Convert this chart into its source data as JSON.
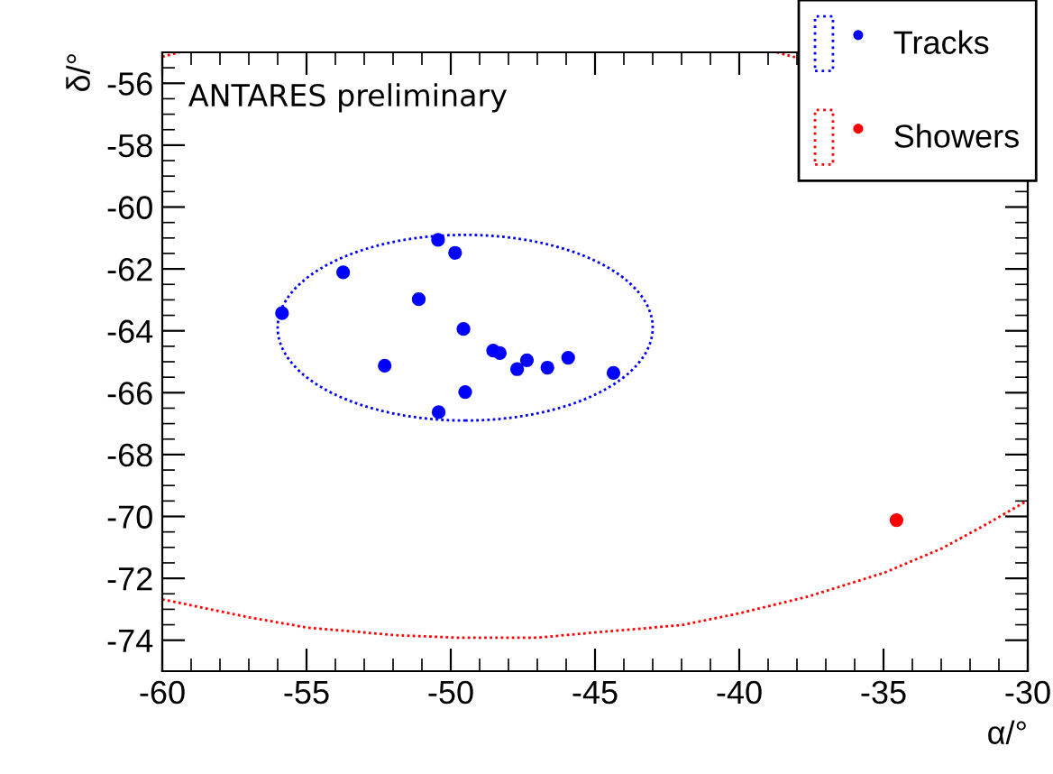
{
  "chart_data": {
    "type": "scatter",
    "xlabel": "α/°",
    "ylabel": "δ/°",
    "annotations": [
      "ANTARES preliminary"
    ],
    "xlim": [
      -60,
      -30
    ],
    "ylim": [
      -75,
      -55
    ],
    "xticks": [
      -60,
      {
        "value": -59,
        "label": null
      },
      {
        "value": -58,
        "label": null
      },
      {
        "value": -57,
        "label": null
      },
      {
        "value": -56,
        "label": null
      },
      -55,
      {
        "value": -54,
        "label": null
      },
      {
        "value": -53,
        "label": null
      },
      {
        "value": -52,
        "label": null
      },
      {
        "value": -51,
        "label": null
      },
      -50,
      {
        "value": -49,
        "label": null
      },
      {
        "value": -48,
        "label": null
      },
      {
        "value": -47,
        "label": null
      },
      {
        "value": -46,
        "label": null
      },
      -45,
      {
        "value": -44,
        "label": null
      },
      {
        "value": -43,
        "label": null
      },
      {
        "value": -42,
        "label": null
      },
      {
        "value": -41,
        "label": null
      },
      -40,
      {
        "value": -39,
        "label": null
      },
      {
        "value": -38,
        "label": null
      },
      {
        "value": -37,
        "label": null
      },
      {
        "value": -36,
        "label": null
      },
      -35,
      {
        "value": -34,
        "label": null
      },
      {
        "value": -33,
        "label": null
      },
      {
        "value": -32,
        "label": null
      },
      {
        "value": -31,
        "label": null
      },
      -30
    ],
    "yticks": [
      {
        "value": -75,
        "label": null
      },
      -74,
      {
        "value": -73.5,
        "label": null
      },
      {
        "value": -73,
        "label": null
      },
      {
        "value": -72.5,
        "label": null
      },
      -72,
      {
        "value": -71.5,
        "label": null
      },
      {
        "value": -71,
        "label": null
      },
      {
        "value": -70.5,
        "label": null
      },
      -70,
      {
        "value": -69.5,
        "label": null
      },
      {
        "value": -69,
        "label": null
      },
      {
        "value": -68.5,
        "label": null
      },
      -68,
      {
        "value": -67.5,
        "label": null
      },
      {
        "value": -67,
        "label": null
      },
      {
        "value": -66.5,
        "label": null
      },
      -66,
      {
        "value": -65.5,
        "label": null
      },
      {
        "value": -65,
        "label": null
      },
      {
        "value": -64.5,
        "label": null
      },
      -64,
      {
        "value": -63.5,
        "label": null
      },
      {
        "value": -63,
        "label": null
      },
      {
        "value": -62.5,
        "label": null
      },
      -62,
      {
        "value": -61.5,
        "label": null
      },
      {
        "value": -61,
        "label": null
      },
      {
        "value": -60.5,
        "label": null
      },
      -60,
      {
        "value": -59.5,
        "label": null
      },
      {
        "value": -59,
        "label": null
      },
      {
        "value": -58.5,
        "label": null
      },
      -58,
      {
        "value": -57.5,
        "label": null
      },
      {
        "value": -57,
        "label": null
      },
      {
        "value": -56.5,
        "label": null
      },
      -56,
      {
        "value": -55.5,
        "label": null
      },
      {
        "value": -55,
        "label": null
      }
    ],
    "grid": false,
    "legend": "top right",
    "marker": "circle",
    "series": [
      {
        "type": "line",
        "line_style": "dotted",
        "marker": "none",
        "color": "#ff0000",
        "x": [
          -60,
          -56.99,
          -54.99,
          -51.87,
          -49.67,
          -47.03,
          -45.01,
          -41.98,
          -40.0,
          -37.58,
          -34.95,
          -32.97,
          -31.43,
          -30
        ],
        "values": [
          -72.68,
          -73.26,
          -73.59,
          -73.84,
          -73.92,
          -73.92,
          -73.75,
          -73.51,
          -73.13,
          -72.58,
          -71.81,
          -71.03,
          -70.25,
          -69.48
        ]
      },
      {
        "type": "line",
        "line_style": "dotted",
        "marker": "none",
        "color": "#ff0000",
        "x": [
          -60,
          -59.4
        ],
        "values": [
          -55.14,
          -55.0
        ]
      },
      {
        "type": "line",
        "line_style": "dotted",
        "marker": "none",
        "color": "#ff0000",
        "x": [
          -38.7,
          -37.9
        ],
        "values": [
          -55.0,
          -55.2
        ]
      },
      {
        "name": "Tracks",
        "color": "#0000ff",
        "x": [
          -50.44,
          -49.85,
          -53.73,
          -55.85,
          -51.11,
          -49.56,
          -52.29,
          -48.53,
          -48.3,
          -47.36,
          -47.7,
          -46.65,
          -45.93,
          -44.36,
          -49.5,
          -50.42
        ],
        "values": [
          -61.06,
          -61.48,
          -62.11,
          -63.43,
          -62.98,
          -63.94,
          -65.13,
          -64.64,
          -64.72,
          -64.95,
          -65.24,
          -65.19,
          -64.87,
          -65.36,
          -65.98,
          -66.63
        ]
      },
      {
        "name": "Showers",
        "color": "#ff0000",
        "x": [
          -34.55
        ],
        "values": [
          -70.12
        ]
      }
    ]
  }
}
